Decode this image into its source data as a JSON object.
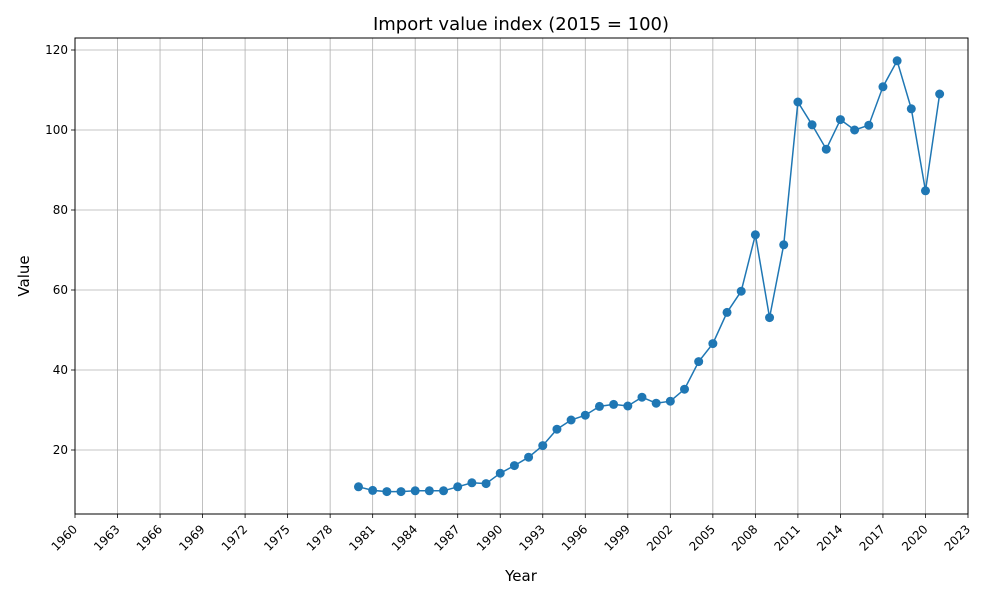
{
  "chart_data": {
    "type": "line",
    "title": "Import value index (2015 = 100)",
    "xlabel": "Year",
    "ylabel": "Value",
    "xlim": [
      1960,
      2023
    ],
    "ylim": [
      4,
      123
    ],
    "xticks": [
      1960,
      1963,
      1966,
      1969,
      1972,
      1975,
      1978,
      1981,
      1984,
      1987,
      1990,
      1993,
      1996,
      1999,
      2002,
      2005,
      2008,
      2011,
      2014,
      2017,
      2020,
      2023
    ],
    "yticks": [
      20,
      40,
      60,
      80,
      100,
      120
    ],
    "grid": true,
    "series": [
      {
        "color": "#1f77b4",
        "marker": "circle",
        "x": [
          1980,
          1981,
          1982,
          1983,
          1984,
          1985,
          1986,
          1987,
          1988,
          1989,
          1990,
          1991,
          1992,
          1993,
          1994,
          1995,
          1996,
          1997,
          1998,
          1999,
          2000,
          2001,
          2002,
          2003,
          2004,
          2005,
          2006,
          2007,
          2008,
          2009,
          2010,
          2011,
          2012,
          2013,
          2014,
          2015,
          2016,
          2017,
          2018,
          2019,
          2020,
          2021
        ],
        "y": [
          10.8,
          9.9,
          9.6,
          9.6,
          9.8,
          9.8,
          9.8,
          10.8,
          11.8,
          11.6,
          14.2,
          16.1,
          18.2,
          21.1,
          25.2,
          27.5,
          28.7,
          30.9,
          31.4,
          31.0,
          33.2,
          31.7,
          32.2,
          35.2,
          42.1,
          46.6,
          54.4,
          59.7,
          73.8,
          53.1,
          71.3,
          107.0,
          101.3,
          95.2,
          102.6,
          100.0,
          101.2,
          110.8,
          117.3,
          105.3,
          84.8,
          109.0
        ]
      }
    ]
  }
}
